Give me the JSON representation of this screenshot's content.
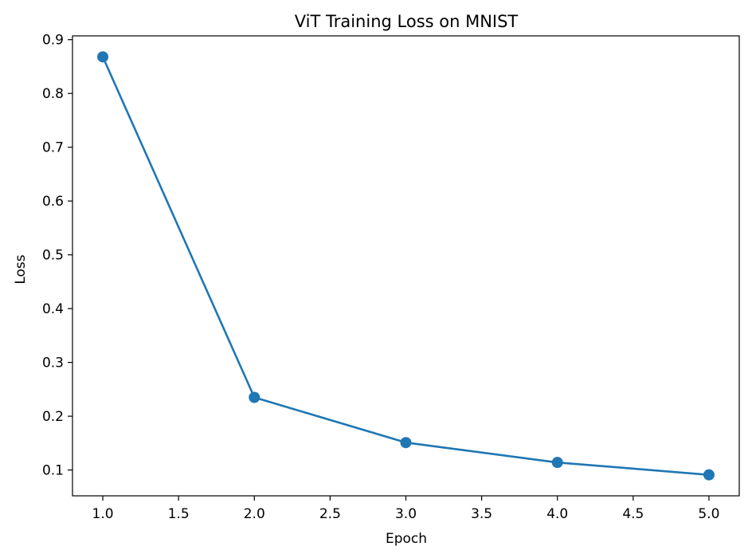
{
  "chart_data": {
    "type": "line",
    "title": "ViT Training Loss on MNIST",
    "xlabel": "Epoch",
    "ylabel": "Loss",
    "x": [
      1,
      2,
      3,
      4,
      5
    ],
    "series": [
      {
        "values": [
          0.868,
          0.235,
          0.151,
          0.114,
          0.091
        ],
        "color": "#1f77b4",
        "marker": "circle"
      }
    ],
    "xlim": [
      0.8,
      5.2
    ],
    "ylim": [
      0.052,
      0.907
    ],
    "xticks": [
      "1.0",
      "1.5",
      "2.0",
      "2.5",
      "3.0",
      "3.5",
      "4.0",
      "4.5",
      "5.0"
    ],
    "yticks": [
      "0.1",
      "0.2",
      "0.3",
      "0.4",
      "0.5",
      "0.6",
      "0.7",
      "0.8",
      "0.9"
    ],
    "grid": false,
    "legend": "none"
  }
}
